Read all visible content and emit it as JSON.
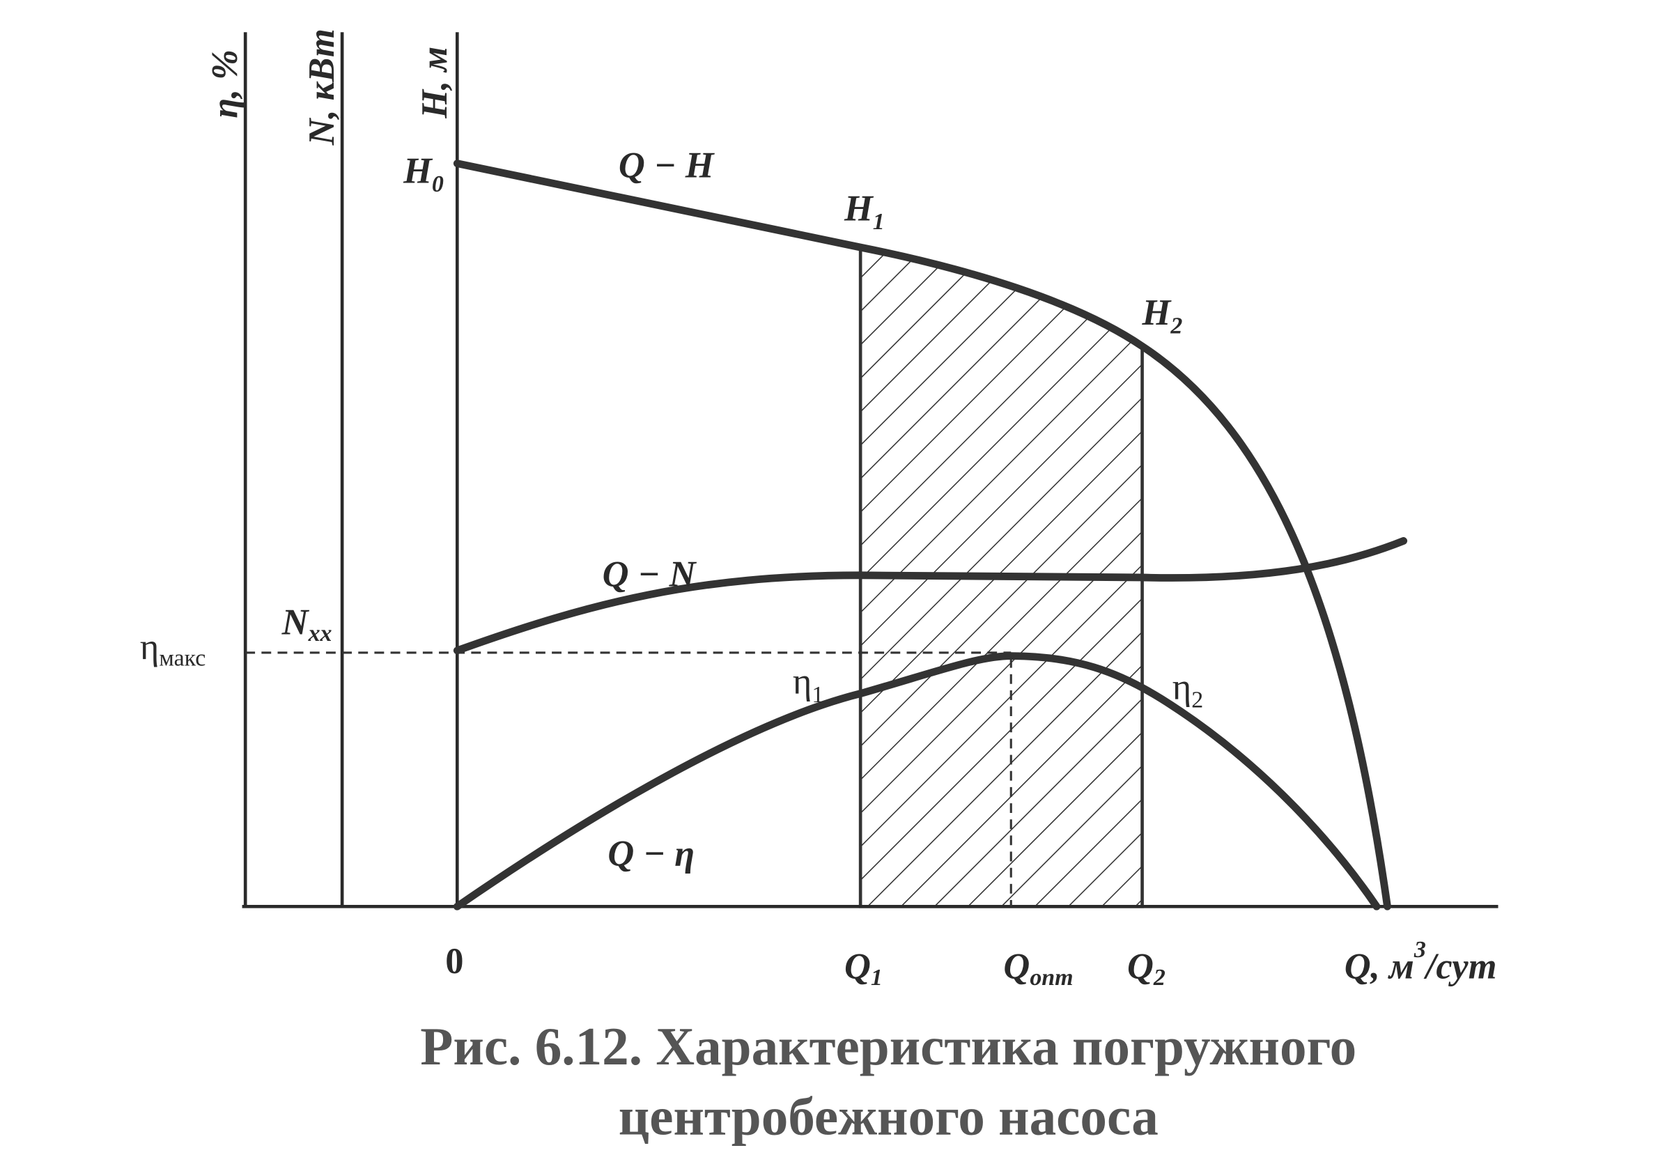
{
  "axes": {
    "eta": {
      "main": "η, %"
    },
    "power": {
      "main": "N, кВт"
    },
    "head": {
      "main": "H, м"
    }
  },
  "curves": {
    "qh": "Q − H",
    "qn": "Q − N",
    "qeta": "Q − η"
  },
  "points": {
    "h0": {
      "main": "H",
      "sub": "0"
    },
    "h1": {
      "main": "H",
      "sub": "1"
    },
    "h2": {
      "main": "H",
      "sub": "2"
    },
    "eta_max": {
      "main": "η",
      "sub": "макс"
    },
    "n_xx": {
      "main": "N",
      "sub": "хх"
    },
    "eta1": {
      "main": "η",
      "sub": "1"
    },
    "eta2": {
      "main": "η",
      "sub": "2"
    }
  },
  "x_labels": {
    "origin": "0",
    "q1": {
      "main": "Q",
      "sub": "1"
    },
    "qopt": {
      "main": "Q",
      "sub": "опт"
    },
    "q2": {
      "main": "Q",
      "sub": "2"
    },
    "q_axis": {
      "main": "Q, м",
      "sup": "3",
      "rest": "/сут"
    }
  },
  "caption": {
    "line1": "Рис. 6.12. Характеристика погружного",
    "line2": "центробежного насоса"
  }
}
